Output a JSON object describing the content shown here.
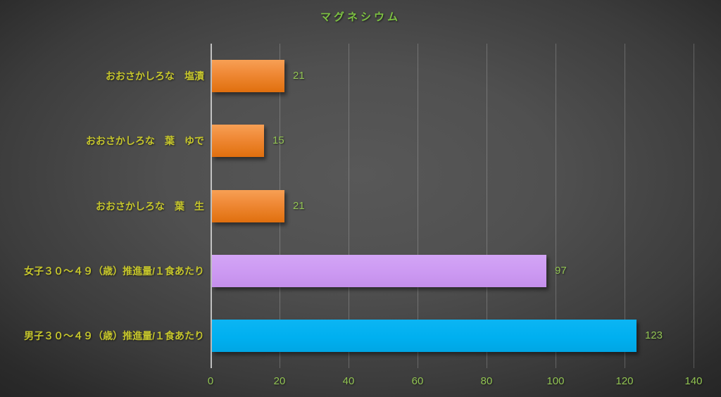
{
  "chart_data": {
    "type": "bar",
    "orientation": "horizontal",
    "title": "マグネシウム",
    "xlabel": "",
    "ylabel": "",
    "xlim": [
      0,
      140
    ],
    "xticks": [
      0,
      20,
      40,
      60,
      80,
      100,
      120,
      140
    ],
    "grid": true,
    "legend": false,
    "categories": [
      "おおさかしろな　塩漬",
      "おおさかしろな　葉　ゆで",
      "おおさかしろな　葉　生",
      "女子３０～４９（歳）推進量/１食あたり",
      "男子３０～４９（歳）推進量/１食あたり"
    ],
    "values": [
      21,
      15,
      21,
      97,
      123
    ],
    "bar_colors": [
      "#ED7D31",
      "#ED7D31",
      "#ED7D31",
      "#CC99F2",
      "#00B0F0"
    ],
    "bar_styles": [
      "orange",
      "orange",
      "orange",
      "purple",
      "blue"
    ]
  },
  "colors": {
    "title_text": "#7DC142",
    "category_text": "#C6C62C",
    "value_text": "#92C453",
    "tick_text": "#92C453",
    "axis_line": "#E4E4E4",
    "gridline": "#6E6E6E",
    "background_center": "#585858",
    "background_edge": "#242424"
  }
}
